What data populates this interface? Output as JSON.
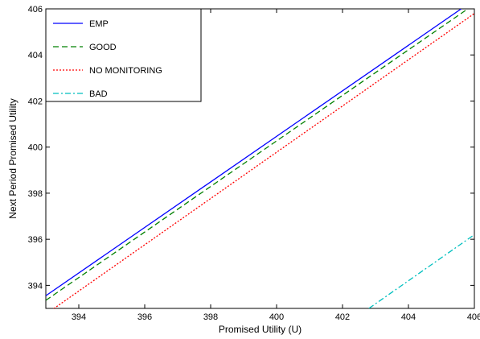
{
  "chart_data": {
    "type": "line",
    "title": "",
    "xlabel": "Promised Utility (U)",
    "ylabel": "Next Period Promised Utility",
    "xlim": [
      393,
      406
    ],
    "ylim": [
      393,
      406
    ],
    "xticks": [
      394,
      396,
      398,
      400,
      402,
      404,
      406
    ],
    "yticks": [
      394,
      396,
      398,
      400,
      402,
      404,
      406
    ],
    "grid": false,
    "legend_position": "top-left",
    "series": [
      {
        "name": "EMP",
        "color": "#0000ff",
        "dash": "solid",
        "x": [
          393,
          405.6
        ],
        "y": [
          393.55,
          406
        ]
      },
      {
        "name": "GOOD",
        "color": "#008000",
        "dash": "dashed",
        "x": [
          393,
          405.8
        ],
        "y": [
          393.35,
          406
        ]
      },
      {
        "name": "NO MONITORING",
        "color": "#ff0000",
        "dash": "dotted",
        "x": [
          393,
          406
        ],
        "y": [
          392.75,
          405.8
        ]
      },
      {
        "name": "BAD",
        "color": "#00bfbf",
        "dash": "dashdot",
        "x": [
          402.8,
          406
        ],
        "y": [
          393,
          396.2
        ]
      }
    ]
  }
}
